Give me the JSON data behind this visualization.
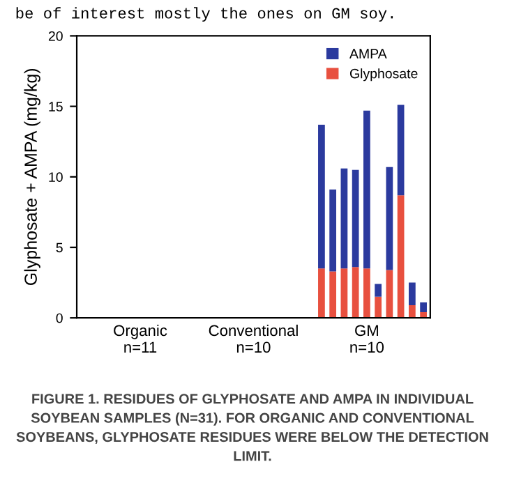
{
  "chart_data": {
    "type": "bar",
    "stacked": true,
    "title": "FIGURE 1. RESIDUES OF GLYPHOSATE AND AMPA IN INDIVIDUAL SOYBEAN SAMPLES (N=31). FOR ORGANIC AND CONVENTIONAL SOYBEANS, GLYPHOSATE RESIDUES WERE BELOW THE DETECTION LIMIT.",
    "annotations": [
      "be of interest mostly the ones on GM soy."
    ],
    "ylabel": "Glyphosate + AMPA (mg/kg)",
    "categories": [
      null,
      null,
      null,
      null,
      null,
      "Organic\nn=11",
      null,
      null,
      null,
      null,
      null,
      null,
      null,
      null,
      null,
      "Conventional\nn=10",
      null,
      null,
      null,
      null,
      null,
      null,
      null,
      null,
      null,
      "GM\nn=10",
      null,
      null,
      null,
      null,
      null
    ],
    "series": [
      {
        "name": "Glyphosate",
        "color": "#e8503f",
        "values": [
          null,
          null,
          null,
          null,
          null,
          null,
          null,
          null,
          null,
          null,
          null,
          null,
          null,
          null,
          null,
          null,
          null,
          null,
          null,
          null,
          null,
          3.5,
          3.3,
          3.5,
          3.6,
          3.5,
          1.5,
          3.4,
          8.7,
          0.9,
          0.4
        ]
      },
      {
        "name": "AMPA",
        "color": "#2b3a9e",
        "values": [
          null,
          null,
          null,
          null,
          null,
          null,
          null,
          null,
          null,
          null,
          null,
          null,
          null,
          null,
          null,
          null,
          null,
          null,
          null,
          null,
          null,
          10.2,
          5.8,
          7.1,
          6.9,
          11.2,
          0.9,
          7.3,
          6.4,
          1.6,
          0.7
        ]
      }
    ],
    "ylim": [
      0,
      20
    ],
    "yticks": [
      0,
      5,
      10,
      15,
      20
    ],
    "grid": false,
    "legend": "top right"
  }
}
